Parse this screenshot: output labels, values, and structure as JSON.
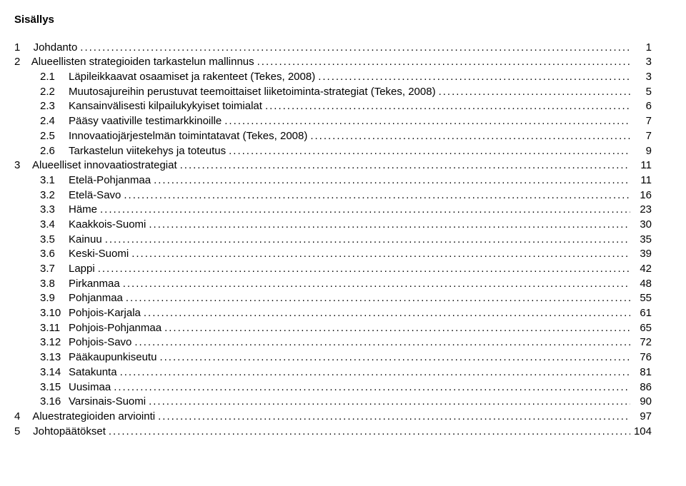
{
  "title": "Sisällys",
  "entries": [
    {
      "level": 0,
      "num": "1",
      "text": "Johdanto",
      "page": "1"
    },
    {
      "level": 0,
      "num": "2",
      "text": "Alueellisten strategioiden tarkastelun mallinnus",
      "page": "3"
    },
    {
      "level": 1,
      "num": "2.1",
      "text": "Läpileikkaavat osaamiset ja rakenteet (Tekes, 2008)",
      "page": "3"
    },
    {
      "level": 1,
      "num": "2.2",
      "text": "Muutosajureihin perustuvat teemoittaiset liiketoiminta-strategiat (Tekes, 2008)",
      "page": "5"
    },
    {
      "level": 1,
      "num": "2.3",
      "text": "Kansainvälisesti kilpailukykyiset toimialat",
      "page": "6"
    },
    {
      "level": 1,
      "num": "2.4",
      "text": "Pääsy vaativille testimarkkinoille",
      "page": "7"
    },
    {
      "level": 1,
      "num": "2.5",
      "text": "Innovaatiojärjestelmän toimintatavat (Tekes, 2008)",
      "page": "7"
    },
    {
      "level": 1,
      "num": "2.6",
      "text": "Tarkastelun viitekehys ja toteutus",
      "page": "9"
    },
    {
      "level": 0,
      "num": "3",
      "text": "Alueelliset innovaatiostrategiat",
      "page": "11"
    },
    {
      "level": 1,
      "num": "3.1",
      "text": "Etelä-Pohjanmaa",
      "page": "11"
    },
    {
      "level": 1,
      "num": "3.2",
      "text": "Etelä-Savo",
      "page": "16"
    },
    {
      "level": 1,
      "num": "3.3",
      "text": "Häme",
      "page": "23"
    },
    {
      "level": 1,
      "num": "3.4",
      "text": "Kaakkois-Suomi",
      "page": "30"
    },
    {
      "level": 1,
      "num": "3.5",
      "text": "Kainuu",
      "page": "35"
    },
    {
      "level": 1,
      "num": "3.6",
      "text": "Keski-Suomi",
      "page": "39"
    },
    {
      "level": 1,
      "num": "3.7",
      "text": "Lappi",
      "page": "42"
    },
    {
      "level": 1,
      "num": "3.8",
      "text": "Pirkanmaa",
      "page": "48"
    },
    {
      "level": 1,
      "num": "3.9",
      "text": "Pohjanmaa",
      "page": "55"
    },
    {
      "level": 1,
      "num": "3.10",
      "text": "Pohjois-Karjala",
      "page": "61"
    },
    {
      "level": 1,
      "num": "3.11",
      "text": "Pohjois-Pohjanmaa",
      "page": "65"
    },
    {
      "level": 1,
      "num": "3.12",
      "text": "Pohjois-Savo",
      "page": "72"
    },
    {
      "level": 1,
      "num": "3.13",
      "text": "Pääkaupunkiseutu",
      "page": "76"
    },
    {
      "level": 1,
      "num": "3.14",
      "text": "Satakunta",
      "page": "81"
    },
    {
      "level": 1,
      "num": "3.15",
      "text": "Uusimaa",
      "page": "86"
    },
    {
      "level": 1,
      "num": "3.16",
      "text": "Varsinais-Suomi",
      "page": "90"
    },
    {
      "level": 0,
      "num": "4",
      "text": "Aluestrategioiden arviointi",
      "page": "97"
    },
    {
      "level": 0,
      "num": "5",
      "text": "Johtopäätökset",
      "page": "104"
    }
  ]
}
